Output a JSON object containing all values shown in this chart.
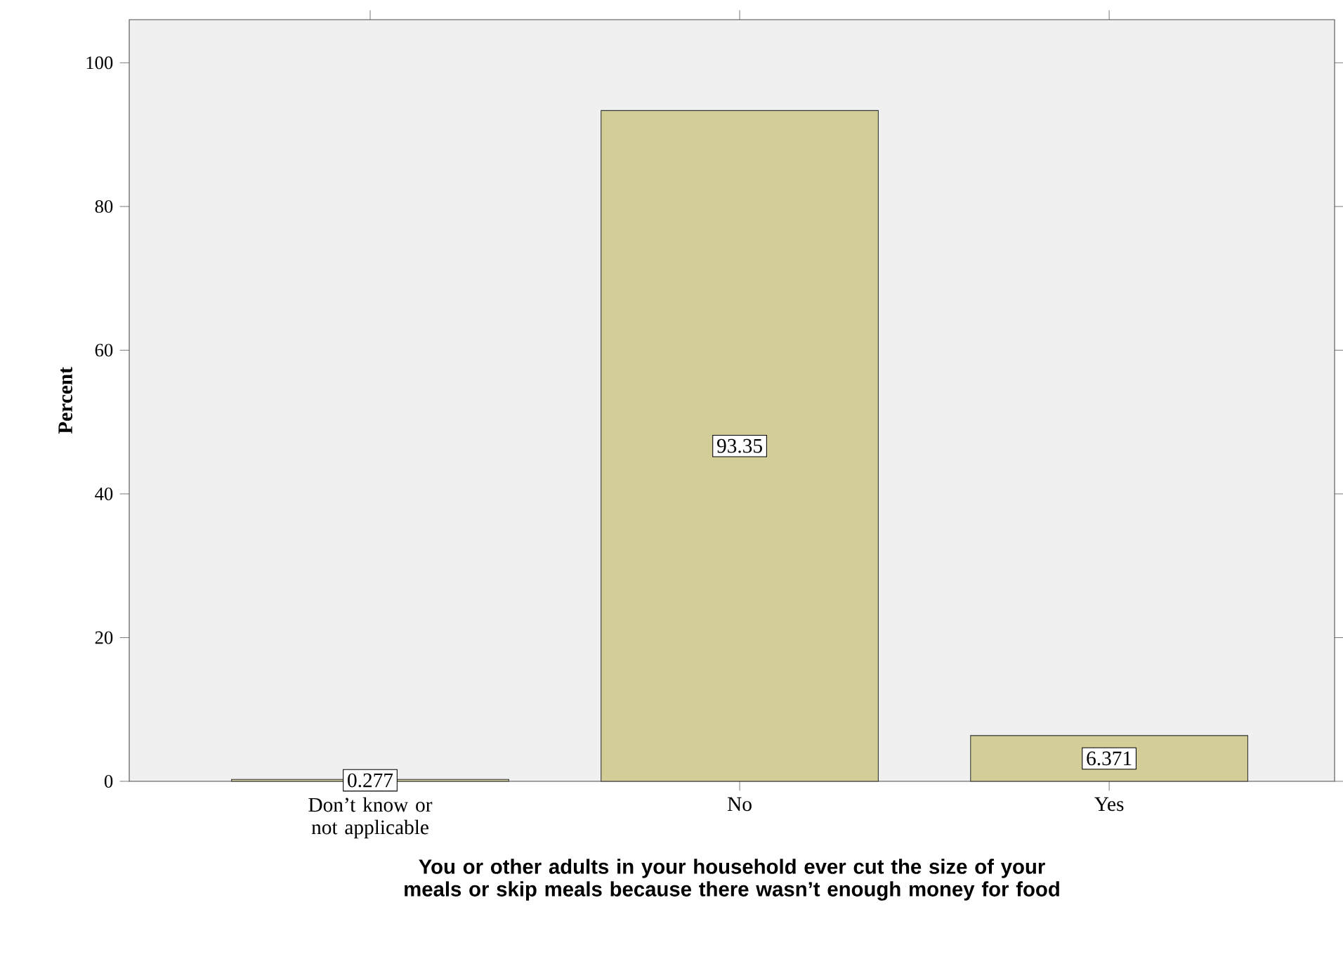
{
  "chart_data": {
    "type": "bar",
    "xlabel": "You or other adults in your household ever cut the size of your meals or skip meals because there wasn’t enough money for food",
    "ylabel": "Percent",
    "categories": [
      "Don’t know or not applicable",
      "No",
      "Yes"
    ],
    "values": [
      0.277,
      93.35,
      6.371
    ],
    "color": "#d3ce97",
    "ylim": [
      0,
      106
    ],
    "yticks": [
      0,
      20,
      40,
      60,
      80,
      100
    ],
    "data_labels": true
  }
}
